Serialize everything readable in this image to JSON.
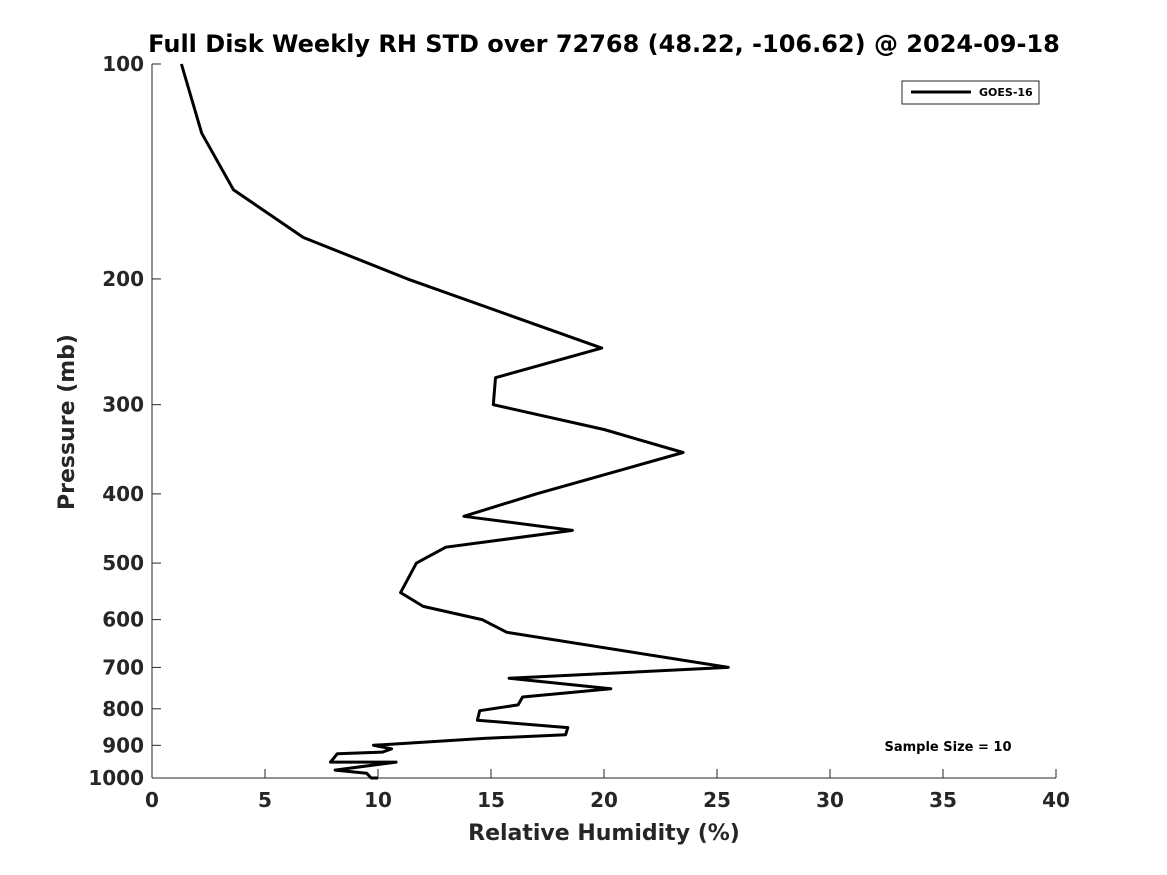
{
  "chart_data": {
    "type": "line",
    "title": "Full Disk Weekly RH STD over 72768 (48.22, -106.62) @ 2024-09-18",
    "xlabel": "Relative Humidity (%)",
    "ylabel": "Pressure (mb)",
    "xlim": [
      0,
      40
    ],
    "ylim": [
      1000,
      100
    ],
    "yscale": "log",
    "grid": false,
    "legend_position": "top-right",
    "x_ticks": [
      0,
      5,
      10,
      15,
      20,
      25,
      30,
      35,
      40
    ],
    "y_ticks": [
      100,
      200,
      300,
      400,
      500,
      600,
      700,
      800,
      900,
      1000
    ],
    "annotation": "Sample Size = 10",
    "series": [
      {
        "name": "GOES-16",
        "color": "#000000",
        "points": [
          {
            "x": 1.3,
            "y": 100
          },
          {
            "x": 2.2,
            "y": 125
          },
          {
            "x": 3.6,
            "y": 150
          },
          {
            "x": 6.7,
            "y": 175
          },
          {
            "x": 11.3,
            "y": 200
          },
          {
            "x": 19.9,
            "y": 250
          },
          {
            "x": 15.2,
            "y": 275
          },
          {
            "x": 15.1,
            "y": 300
          },
          {
            "x": 20.0,
            "y": 325
          },
          {
            "x": 23.5,
            "y": 350
          },
          {
            "x": 17.0,
            "y": 400
          },
          {
            "x": 13.8,
            "y": 430
          },
          {
            "x": 18.6,
            "y": 450
          },
          {
            "x": 13.0,
            "y": 475
          },
          {
            "x": 11.7,
            "y": 500
          },
          {
            "x": 11.0,
            "y": 550
          },
          {
            "x": 12.0,
            "y": 575
          },
          {
            "x": 14.6,
            "y": 600
          },
          {
            "x": 15.7,
            "y": 625
          },
          {
            "x": 25.5,
            "y": 700
          },
          {
            "x": 15.8,
            "y": 725
          },
          {
            "x": 20.3,
            "y": 750
          },
          {
            "x": 16.4,
            "y": 770
          },
          {
            "x": 16.2,
            "y": 790
          },
          {
            "x": 14.5,
            "y": 805
          },
          {
            "x": 14.4,
            "y": 830
          },
          {
            "x": 18.4,
            "y": 850
          },
          {
            "x": 18.3,
            "y": 870
          },
          {
            "x": 14.7,
            "y": 880
          },
          {
            "x": 9.8,
            "y": 900
          },
          {
            "x": 10.6,
            "y": 910
          },
          {
            "x": 10.2,
            "y": 920
          },
          {
            "x": 8.2,
            "y": 925
          },
          {
            "x": 7.9,
            "y": 950
          },
          {
            "x": 10.8,
            "y": 950
          },
          {
            "x": 8.1,
            "y": 975
          },
          {
            "x": 9.5,
            "y": 985
          },
          {
            "x": 9.7,
            "y": 1000
          },
          {
            "x": 10.0,
            "y": 1000
          }
        ]
      }
    ]
  }
}
